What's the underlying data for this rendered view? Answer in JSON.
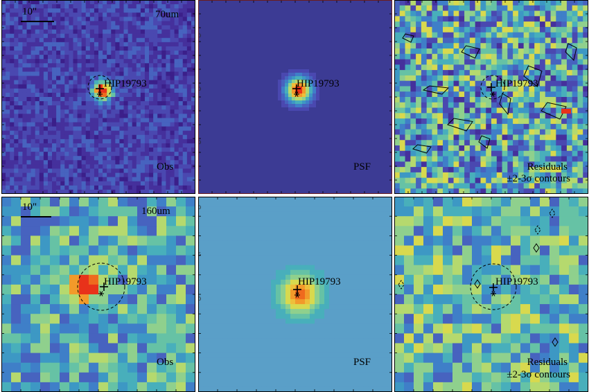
{
  "palette": [
    "#3b1f8a",
    "#45309c",
    "#4a48b0",
    "#4763bf",
    "#3f7fc8",
    "#3d98c4",
    "#48afbb",
    "#66c2a5",
    "#8fd08d",
    "#b5d96e",
    "#d8d94e",
    "#eebf3a",
    "#f29a2a",
    "#ef6a1e",
    "#e8321a"
  ],
  "psf_blue": "#3c3b94",
  "psf_teal": "#5a9fc8",
  "rows": [
    {
      "band": "70um",
      "scalebar": "10\"",
      "obs_label": "Obs",
      "psf_label": "PSF",
      "res_label_1": "Residuals",
      "res_label_2": "±2-3σ contours",
      "target": "HIP19793",
      "psf_ticks": [
        "30",
        "20",
        "10"
      ]
    },
    {
      "band": "160um",
      "scalebar": "10\"",
      "obs_label": "Obs",
      "psf_label": "PSF",
      "res_label_1": "Residuals",
      "res_label_2": "±2-3σ contours",
      "target": "HIP19793",
      "psf_ticks": [
        "20",
        "15",
        "10",
        "5"
      ]
    }
  ]
}
